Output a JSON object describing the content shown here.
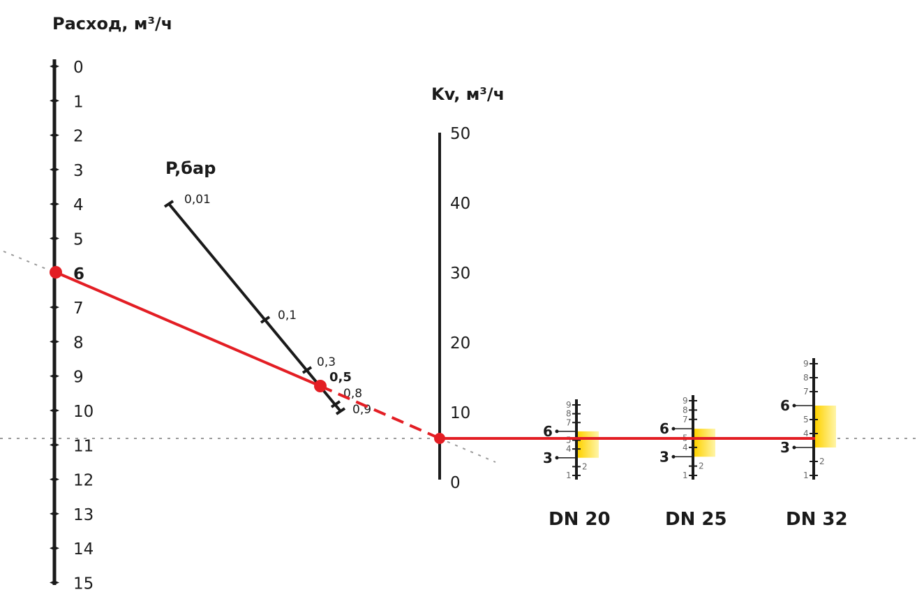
{
  "chart_data": {
    "type": "nomogram",
    "flow_axis": {
      "title": "Расход, м³/ч",
      "ticks": [
        "0",
        "1",
        "2",
        "3",
        "4",
        "5",
        "6",
        "7",
        "8",
        "9",
        "10",
        "11",
        "12",
        "13",
        "14",
        "15"
      ],
      "selected_value": 6
    },
    "pressure_axis": {
      "title": "P,бар",
      "ticks": [
        {
          "value": 0.01,
          "label": "0,01"
        },
        {
          "value": 0.1,
          "label": "0,1"
        },
        {
          "value": 0.3,
          "label": "0,3"
        },
        {
          "value": 0.5,
          "label": "0,5"
        },
        {
          "value": 0.8,
          "label": "0,8"
        },
        {
          "value": 0.9,
          "label": "0,9"
        }
      ],
      "selected_value": 0.5,
      "selected_label": "0,5"
    },
    "kv_axis": {
      "title": "Kv, м³/ч",
      "ticks": [
        "50",
        "40",
        "30",
        "20",
        "10",
        "0"
      ],
      "range": [
        0,
        50
      ],
      "result_value": 4
    },
    "valves": [
      {
        "name": "DN 20",
        "scale_labels": [
          "9",
          "8",
          "7",
          "5",
          "4",
          "2",
          "1"
        ],
        "marks": [
          {
            "label": "6",
            "value": 6
          },
          {
            "label": "3",
            "value": 3
          }
        ],
        "range": [
          1,
          9
        ],
        "highlight_range": [
          3,
          6
        ],
        "highlight_colors": [
          "#ffd200",
          "#fff5a8"
        ]
      },
      {
        "name": "DN 25",
        "scale_labels": [
          "9",
          "8",
          "7",
          "5",
          "4",
          "2",
          "1"
        ],
        "marks": [
          {
            "label": "6",
            "value": 6
          },
          {
            "label": "3",
            "value": 3
          }
        ],
        "range": [
          1,
          9
        ],
        "highlight_range": [
          3,
          6
        ],
        "highlight_colors": [
          "#ffd200",
          "#fff5a8"
        ]
      },
      {
        "name": "DN 32",
        "scale_labels": [
          "9",
          "8",
          "7",
          "5",
          "4",
          "2",
          "1"
        ],
        "marks": [
          {
            "label": "6",
            "value": 6
          },
          {
            "label": "3",
            "value": 3
          }
        ],
        "range": [
          1,
          9
        ],
        "highlight_range": [
          3,
          6
        ],
        "highlight_colors": [
          "#ffd200",
          "#fff5a8"
        ]
      }
    ],
    "colors": {
      "solution_line": "#e31e24",
      "axis": "#1a1a1a",
      "guide": "#9a9a9a"
    }
  }
}
